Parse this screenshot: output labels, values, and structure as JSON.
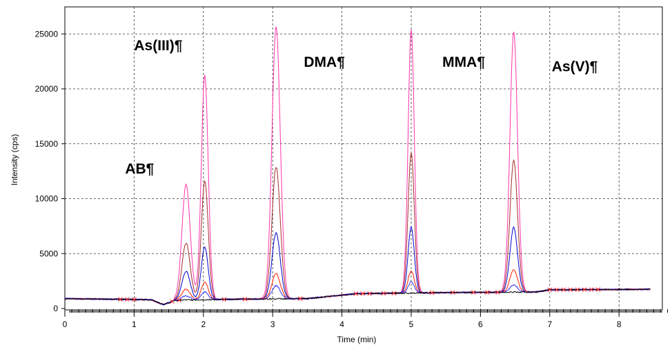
{
  "chart_data": {
    "type": "line",
    "xlabel": "Time (min)",
    "ylabel": "Intensity (cps)",
    "xlim": [
      0,
      8.7
    ],
    "ylim": [
      0,
      26500
    ],
    "x_ticks": [
      0,
      1,
      2,
      3,
      4,
      5,
      6,
      7,
      8
    ],
    "y_ticks": [
      0,
      5000,
      10000,
      15000,
      20000,
      25000
    ],
    "grid": true,
    "legend": "none",
    "annotations": [
      {
        "text": "As(III)¶",
        "x": 1.0,
        "y": 23500
      },
      {
        "text": "DMA¶",
        "x": 3.45,
        "y": 22000
      },
      {
        "text": "MMA¶",
        "x": 5.45,
        "y": 22000
      },
      {
        "text": "As(V)¶",
        "x": 7.03,
        "y": 21600
      },
      {
        "text": "AB¶",
        "x": 0.87,
        "y": 12300
      }
    ],
    "peaks": [
      {
        "label": "AB",
        "t": 1.75,
        "width": 0.06
      },
      {
        "label": "As(III)",
        "t": 2.02,
        "width": 0.05
      },
      {
        "label": "DMA",
        "t": 3.05,
        "width": 0.06
      },
      {
        "label": "MMA",
        "t": 5.0,
        "width": 0.045
      },
      {
        "label": "As(V)",
        "t": 6.48,
        "width": 0.055
      }
    ],
    "baseline": [
      {
        "x": 0,
        "y": 900
      },
      {
        "x": 1.25,
        "y": 800
      },
      {
        "x": 1.42,
        "y": 350
      },
      {
        "x": 1.6,
        "y": 750
      },
      {
        "x": 2.5,
        "y": 850
      },
      {
        "x": 3.5,
        "y": 900
      },
      {
        "x": 4.2,
        "y": 1350
      },
      {
        "x": 5.5,
        "y": 1450
      },
      {
        "x": 6.8,
        "y": 1500
      },
      {
        "x": 7.0,
        "y": 1700
      },
      {
        "x": 8.45,
        "y": 1750
      }
    ],
    "series": [
      {
        "color": "#ff33aa",
        "heights": [
          10500,
          20500,
          24800,
          24000,
          23700
        ]
      },
      {
        "color": "#a52a2a",
        "heights": [
          5200,
          10800,
          12000,
          12800,
          12000
        ]
      },
      {
        "color": "#0000cc",
        "heights": [
          2600,
          4800,
          6000,
          6000,
          5900
        ]
      },
      {
        "color": "#ff2200",
        "heights": [
          1000,
          1600,
          2300,
          2000,
          2000
        ]
      },
      {
        "color": "#3333ff",
        "heights": [
          400,
          700,
          1200,
          1000,
          650
        ]
      },
      {
        "color": "#000000",
        "heights": [
          0,
          0,
          0,
          0,
          0
        ]
      }
    ],
    "marker_color": "#ff3333",
    "markers_x": [
      0.8,
      0.9,
      1.0,
      1.55,
      1.65,
      2.3,
      2.6,
      3.4,
      4.2,
      4.3,
      4.4,
      4.6,
      4.75,
      5.3,
      5.6,
      5.9,
      6.1,
      6.25,
      7.0,
      7.1,
      7.2,
      7.3,
      7.4,
      7.5,
      7.6,
      7.7
    ]
  }
}
